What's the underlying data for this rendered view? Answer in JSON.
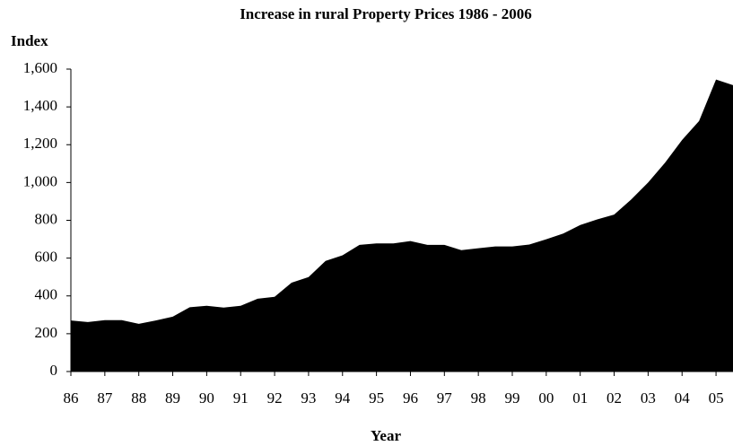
{
  "chart_data": {
    "type": "area",
    "title": "Increase in rural Property Prices 1986 - 2006",
    "y_label": "Index",
    "x_label": "Year",
    "color": "#000000",
    "categories": [
      "86",
      null,
      "87",
      null,
      "88",
      null,
      "89",
      null,
      "90",
      null,
      "91",
      null,
      "92",
      null,
      "93",
      null,
      "94",
      null,
      "95",
      null,
      "96",
      null,
      "97",
      null,
      "98",
      null,
      "99",
      null,
      "00",
      null,
      "01",
      null,
      "02",
      null,
      "03",
      null,
      "04",
      null,
      "05",
      null
    ],
    "values": [
      270,
      262,
      272,
      272,
      252,
      270,
      290,
      340,
      348,
      338,
      348,
      385,
      395,
      470,
      500,
      585,
      615,
      670,
      678,
      678,
      690,
      670,
      670,
      642,
      652,
      662,
      662,
      672,
      700,
      730,
      775,
      805,
      830,
      910,
      1000,
      1105,
      1225,
      1325,
      1545,
      1515
    ],
    "ylim": [
      0,
      1600
    ],
    "yticks": [
      0,
      200,
      400,
      600,
      800,
      {
        "value": 1000,
        "label": "1,000"
      },
      {
        "value": 1200,
        "label": "1,200"
      },
      {
        "value": 1400,
        "label": "1,400"
      },
      {
        "value": 1600,
        "label": "1,600"
      }
    ]
  }
}
